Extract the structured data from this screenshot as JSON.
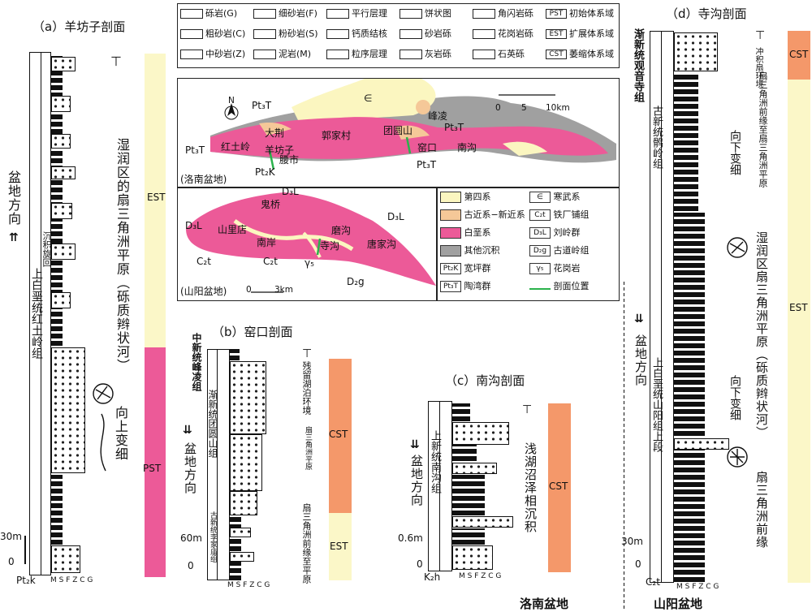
{
  "panel_a": {
    "title": "（a）羊坊子剖面",
    "stratum": "上白垩统红土岭组",
    "direction": "盆地方向",
    "paleocurrent": "沉积旋回",
    "env": "湿润区的扇三角洲平原（砾质辫状河）",
    "trend": "向上变细",
    "scale": "30m",
    "zero": "0",
    "base_label": "Pt₂k",
    "grain_axis": "M S F Z C G",
    "est": "EST",
    "pst": "PST"
  },
  "legend": {
    "items": [
      {
        "sym": "砾岩(G)"
      },
      {
        "sym": "细砂岩(F)"
      },
      {
        "sym": "平行层理"
      },
      {
        "sym": "饼状图"
      },
      {
        "sym": "角闪岩砾"
      },
      {
        "sym": "PST",
        "text": "初始体系域"
      },
      {
        "sym": "粗砂岩(C)"
      },
      {
        "sym": "粉砂岩(S)"
      },
      {
        "sym": "钙质结核"
      },
      {
        "sym": "砂岩砾"
      },
      {
        "sym": "花岗岩砾"
      },
      {
        "sym": "EST",
        "text": "扩展体系域"
      },
      {
        "sym": "中砂岩(Z)"
      },
      {
        "sym": "泥岩(M)"
      },
      {
        "sym": "粒序层理"
      },
      {
        "sym": "灰岩砾"
      },
      {
        "sym": "石英砾"
      },
      {
        "sym": "CST",
        "text": "萎缩体系域"
      }
    ]
  },
  "map_top": {
    "basin": "(洛南盆地)",
    "north": "N",
    "scale_labels": [
      "0",
      "5",
      "10km"
    ],
    "labels": [
      "Pt₃T",
      "∈",
      "峰凌",
      "大荆",
      "郭家村",
      "团圆山",
      "Pt₃T",
      "红土岭",
      "羊坊子",
      "腰市",
      "窑口",
      "南沟",
      "Pt₃T",
      "Pt₂K",
      "Pt₃T"
    ]
  },
  "map_bottom": {
    "basin": "(山阳盆地)",
    "scale_labels": [
      "0",
      "3km"
    ],
    "labels": [
      "鬼桥",
      "D₃L",
      "D₃L",
      "山里店",
      "南岸",
      "磨沟",
      "D₃L",
      "寺沟",
      "唐家沟",
      "C₂t",
      "C₂t",
      "γ₅",
      "D₂g"
    ]
  },
  "map_legend": [
    {
      "color": "#fbf6c0",
      "text": "第四系"
    },
    {
      "sym": "∈",
      "text": "寒武系"
    },
    {
      "color": "#f5c898",
      "text": "古近系−新近系"
    },
    {
      "sym": "C₂t",
      "text": "铁厂铺组"
    },
    {
      "color": "#ec5a98",
      "text": "白垩系"
    },
    {
      "sym": "D₃L",
      "text": "刘岭群"
    },
    {
      "color": "#a0a0a0",
      "text": "其他沉积"
    },
    {
      "sym": "D₂g",
      "text": "古道岭组"
    },
    {
      "sym": "Pt₂K",
      "text": "宽坪群"
    },
    {
      "sym": "γ₅",
      "text": "花岗岩"
    },
    {
      "sym": "Pt₃T",
      "text": "陶湾群"
    },
    {
      "sym": "line",
      "text": "剖面位置"
    }
  ],
  "panel_b": {
    "title": "（b）窑口剖面",
    "stratum_top": "中新统峰凌组",
    "stratum_mid": "渐新统团圆山组",
    "stratum_bot": "古新统李家庙组",
    "direction": "盆地方向",
    "env1": "残留湖泊环境",
    "env2": "扇三角洲平原",
    "env3": "扇三角洲前缘至平原",
    "scale": "60m",
    "zero": "0",
    "grain_axis": "M S F Z C G",
    "cst": "CST",
    "est": "EST"
  },
  "panel_c": {
    "title": "（c）南沟剖面",
    "stratum": "上新统南沟组",
    "direction": "盆地方向",
    "env": "浅湖沼泽相沉积",
    "scale": "0.6m",
    "zero": "0",
    "base_label": "K₂h",
    "grain_axis": "M S F Z C G",
    "cst": "CST",
    "footer": "洛南盆地"
  },
  "panel_d": {
    "title": "（d）寺沟剖面",
    "stratum_top": "渐新统观音寺组",
    "stratum_mid": "古新统鹘岭组",
    "stratum_bot": "上白垩统山阳组上段",
    "env_top": "冲积扇环境",
    "env_mid": "扇三角洲前缘至扇三角洲平原",
    "env_main": "湿润区扇三角洲平原（砾质辫状河）",
    "env_bot": "扇三角洲前缘",
    "trend1": "向下变细",
    "trend2": "向下变细",
    "direction": "盆地方向",
    "scale": "30m",
    "zero": "0",
    "base_label": "C₂t",
    "grain_axis": "M S F Z C G",
    "cst": "CST",
    "est": "EST",
    "footer": "山阳盆地"
  },
  "colors": {
    "est": "#fbf7c8",
    "pst": "#ec5a98",
    "cst": "#f4986a",
    "cretaceous": "#ec5a98",
    "quaternary": "#fbf6c0",
    "paleogene": "#f5c898",
    "other": "#a0a0a0"
  }
}
